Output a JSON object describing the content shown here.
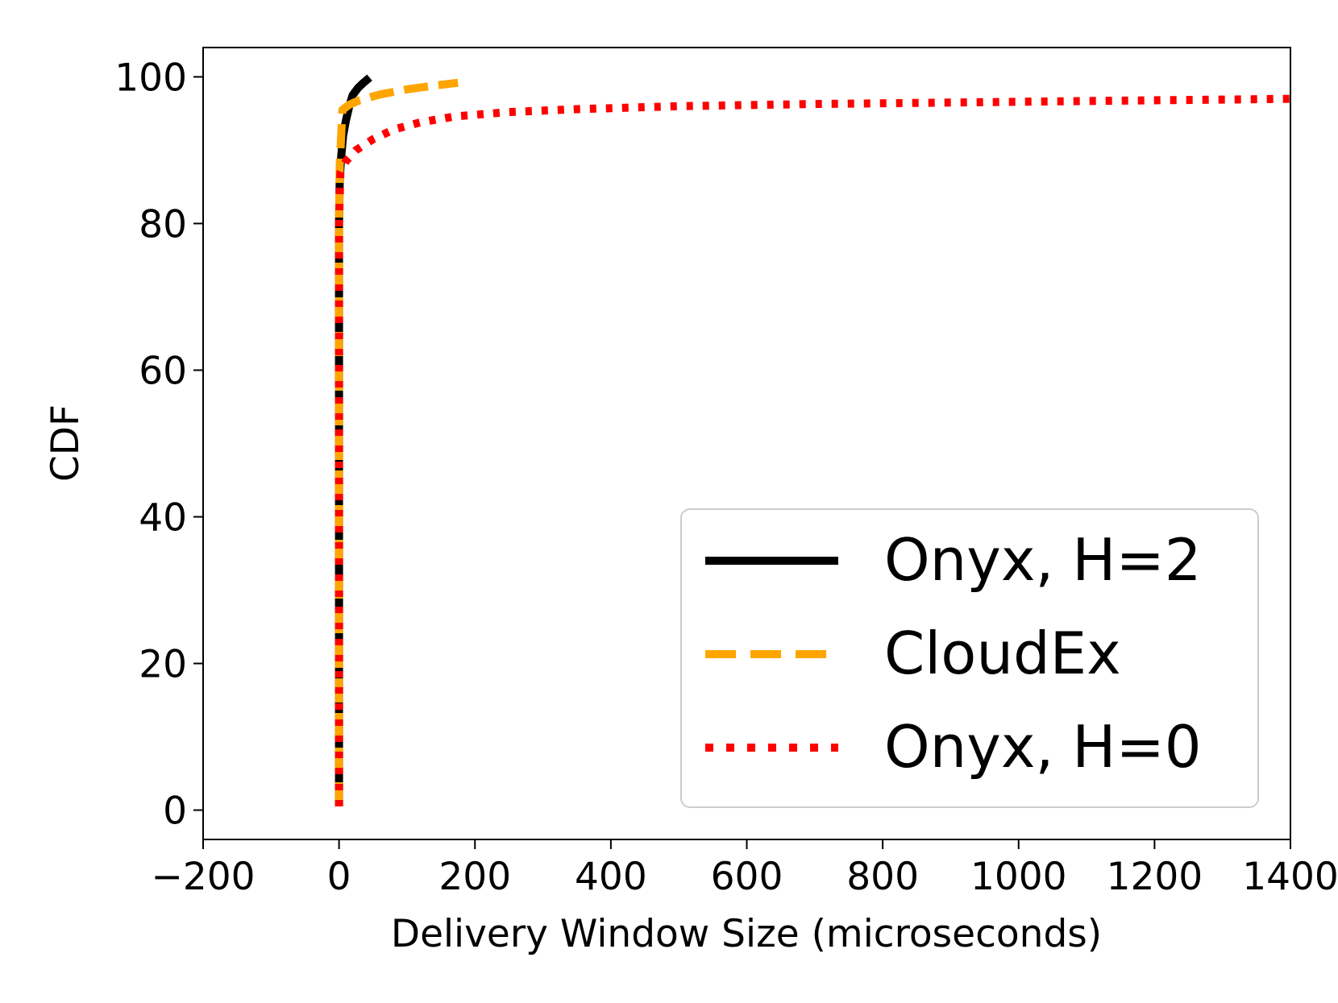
{
  "chart_data": {
    "type": "line",
    "title": "",
    "xlabel": "Delivery Window Size (microseconds)",
    "ylabel": "CDF",
    "xlim": [
      -200,
      1400
    ],
    "ylim": [
      -4,
      104
    ],
    "xticks": [
      -200,
      0,
      200,
      400,
      600,
      800,
      1000,
      1200,
      1400
    ],
    "xtick_labels": [
      "−200",
      "0",
      "200",
      "400",
      "600",
      "800",
      "1000",
      "1200",
      "1400"
    ],
    "yticks": [
      0,
      20,
      40,
      60,
      80,
      100
    ],
    "ytick_labels": [
      "0",
      "20",
      "40",
      "60",
      "80",
      "100"
    ],
    "grid": false,
    "legend_position": "bottom-right",
    "series": [
      {
        "name": "Onyx, H=2",
        "color": "#000000",
        "style": "solid",
        "x": [
          0,
          0,
          0,
          0,
          1,
          3,
          6,
          10,
          15,
          20,
          28,
          36,
          45
        ],
        "y": [
          0.5,
          20,
          50,
          80,
          86,
          89,
          92,
          94,
          96,
          97.5,
          98.5,
          99.2,
          99.9
        ]
      },
      {
        "name": "CloudEx",
        "color": "#FFA500",
        "style": "dashed",
        "x": [
          0,
          0,
          0,
          0,
          1,
          5,
          15,
          30,
          60,
          100,
          140,
          175
        ],
        "y": [
          0.5,
          20,
          50,
          80,
          88,
          95.5,
          96.2,
          96.8,
          97.6,
          98.3,
          98.8,
          99.2
        ]
      },
      {
        "name": "Onyx, H=0",
        "color": "#FF0000",
        "style": "dotted",
        "x": [
          0,
          0,
          0,
          0,
          2,
          10,
          25,
          50,
          80,
          120,
          170,
          250,
          350,
          500,
          700,
          900,
          1100,
          1300,
          1400
        ],
        "y": [
          0.5,
          20,
          50,
          80,
          87,
          88.5,
          90,
          91.5,
          92.8,
          93.8,
          94.6,
          95.2,
          95.6,
          96,
          96.3,
          96.5,
          96.7,
          96.9,
          97
        ]
      }
    ]
  }
}
